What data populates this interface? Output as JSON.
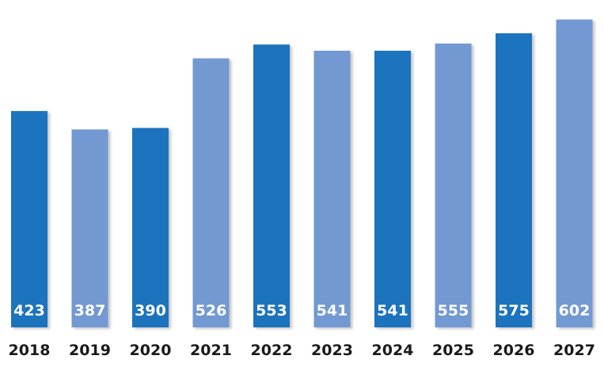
{
  "chart_data": {
    "type": "bar",
    "categories": [
      "2018",
      "2019",
      "2020",
      "2021",
      "2022",
      "2023",
      "2024",
      "2025",
      "2026",
      "2027"
    ],
    "values": [
      423,
      387,
      390,
      526,
      553,
      541,
      541,
      555,
      575,
      602
    ],
    "title": "",
    "xlabel": "",
    "ylabel": "",
    "ylim": [
      0,
      620
    ],
    "grid": false,
    "data_labels": "inside-bottom",
    "colors": {
      "dark": "#1f73be",
      "light": "#7399d2"
    },
    "bar_shades": [
      "dark",
      "light",
      "dark",
      "light",
      "dark",
      "light",
      "dark",
      "light",
      "dark",
      "light"
    ]
  }
}
